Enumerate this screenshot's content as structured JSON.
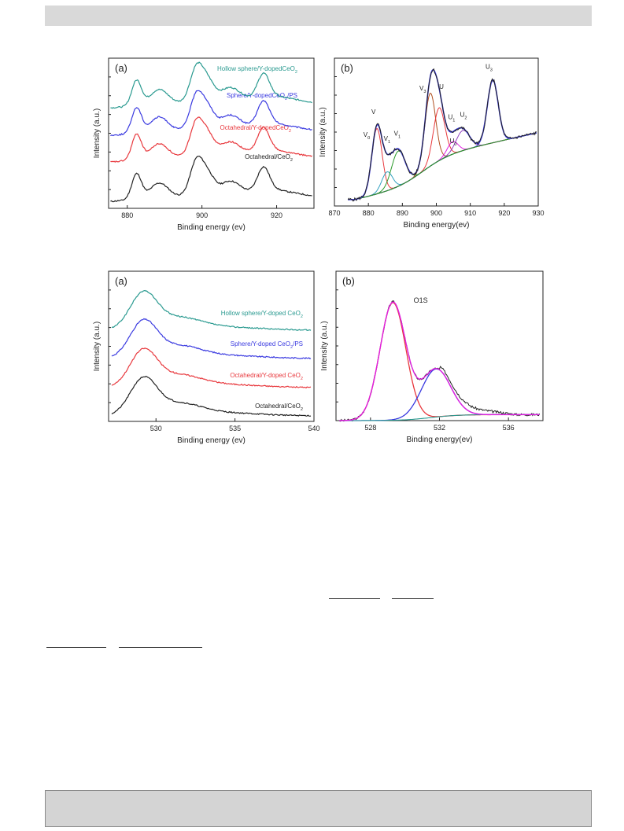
{
  "colors": {
    "black": "#222222",
    "red": "#e8383d",
    "blue": "#3a3ae0",
    "teal": "#2a9a90",
    "green": "#2a9a2a",
    "magenta": "#e020e0",
    "cyan": "#30a0c0",
    "brown": "#b05020",
    "purple": "#9040c0"
  },
  "chart_data": [
    {
      "type": "line",
      "panel": "(a)",
      "xlabel": "Binding energy (ev)",
      "ylabel": "Intensity (a.u.)",
      "xlim": [
        875,
        930
      ],
      "xticks": [
        880,
        900,
        920
      ],
      "series": [
        {
          "name": "Octahedral/CeO",
          "sub": "2",
          "color": "#222222",
          "offset": 0
        },
        {
          "name": "Octahedral/Y-dopedCeO",
          "sub": "2",
          "color": "#e8383d",
          "offset": 1
        },
        {
          "name": "Sphere/Y-dopedCeO",
          "sub": "2",
          "suffix": "/PS",
          "color": "#3a3ae0",
          "offset": 2
        },
        {
          "name": "Hollow sphere/Y-dopedCeO",
          "sub": "2",
          "color": "#2a9a90",
          "offset": 3
        }
      ]
    },
    {
      "type": "line",
      "panel": "(b)",
      "xlabel": "Binding energy(ev)",
      "ylabel": "Intensity (a.u.)",
      "xlim": [
        870,
        930
      ],
      "xticks": [
        870,
        880,
        890,
        900,
        910,
        920,
        930
      ],
      "peak_labels": [
        {
          "text": "V",
          "sub": "",
          "x": 881.5,
          "y": 0.73
        },
        {
          "text": "V",
          "sub": "0",
          "x": 879.5,
          "y": 0.55
        },
        {
          "text": "V",
          "sub": "1",
          "x": 885.5,
          "y": 0.52
        },
        {
          "text": "V",
          "sub": "1",
          "x": 888.5,
          "y": 0.56
        },
        {
          "text": "V",
          "sub": "3",
          "x": 896.0,
          "y": 0.92
        },
        {
          "text": "U",
          "sub": "",
          "x": 901.5,
          "y": 0.93
        },
        {
          "text": "U",
          "sub": "1",
          "x": 904.5,
          "y": 0.69
        },
        {
          "text": "U",
          "sub": "2",
          "x": 908.0,
          "y": 0.71
        },
        {
          "text": "U",
          "sub": "0",
          "x": 905.0,
          "y": 0.5
        },
        {
          "text": "U",
          "sub": "3",
          "x": 915.5,
          "y": 1.09
        }
      ]
    },
    {
      "type": "line",
      "panel": "(a)",
      "xlabel": "Binding energy (ev)",
      "ylabel": "Intensity (a.u.)",
      "xlim": [
        527,
        540
      ],
      "xticks": [
        530,
        535,
        540
      ],
      "series": [
        {
          "name": "Octahedral/CeO",
          "sub": "2",
          "color": "#222222",
          "offset": 0
        },
        {
          "name": "Octahedral/Y-doped CeO",
          "sub": "2",
          "color": "#e8383d",
          "offset": 1
        },
        {
          "name": "Sphere/Y-doped CeO",
          "sub": "2",
          "suffix": "/PS",
          "color": "#3a3ae0",
          "offset": 2
        },
        {
          "name": "Hollow sphere/Y-doped CeO",
          "sub": "2",
          "color": "#2a9a90",
          "offset": 3
        }
      ]
    },
    {
      "type": "line",
      "panel": "(b)",
      "xlabel": "Binding energy(ev)",
      "ylabel": "Intensity (a.u.)",
      "xlim": [
        526,
        538
      ],
      "xticks": [
        528,
        532,
        536
      ],
      "annotation": "O1S"
    }
  ]
}
